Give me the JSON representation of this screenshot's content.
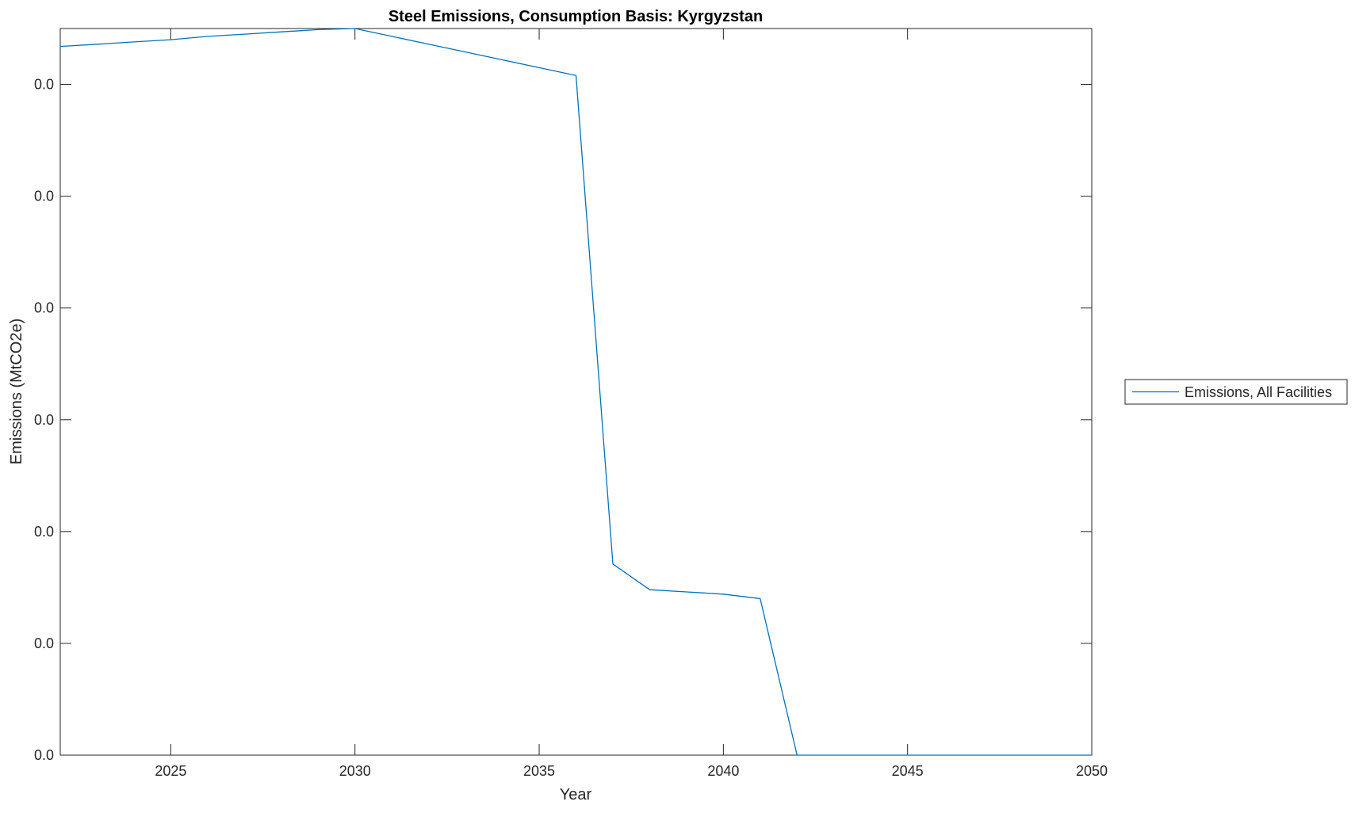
{
  "chart_data": {
    "type": "line",
    "title": "Steel Emissions, Consumption Basis: Kyrgyzstan",
    "xlabel": "Year",
    "ylabel": "Emissions (MtCO2e)",
    "xlim": [
      2022,
      2050
    ],
    "ylim": [
      0,
      0.065
    ],
    "xticks": [
      2025,
      2030,
      2035,
      2040,
      2045,
      2050
    ],
    "xtick_labels": [
      "2025",
      "2030",
      "2035",
      "2040",
      "2045",
      "2050"
    ],
    "yticks": [
      0,
      0.01,
      0.02,
      0.03,
      0.04,
      0.05,
      0.06
    ],
    "ytick_labels": [
      "0.0",
      "0.0",
      "0.0",
      "0.0",
      "0.0",
      "0.0",
      "0.0"
    ],
    "grid": false,
    "legend": {
      "placement": "outside-right",
      "entries": [
        "Emissions, All Facilities"
      ]
    },
    "series": [
      {
        "name": "Emissions, All Facilities",
        "color": "#0072BD",
        "x": [
          2022,
          2023,
          2024,
          2025,
          2026,
          2027,
          2028,
          2029,
          2030,
          2031,
          2032,
          2033,
          2034,
          2035,
          2036,
          2037,
          2038,
          2039,
          2040,
          2041,
          2042,
          2043,
          2044,
          2045,
          2046,
          2047,
          2048,
          2049,
          2050
        ],
        "y": [
          0.0634,
          0.0636,
          0.0638,
          0.064,
          0.0643,
          0.0645,
          0.0647,
          0.0649,
          0.065,
          0.0643,
          0.0636,
          0.0629,
          0.0622,
          0.0615,
          0.0608,
          0.0171,
          0.0148,
          0.0146,
          0.0144,
          0.014,
          0,
          0,
          0,
          0,
          0,
          0,
          0,
          0,
          0
        ]
      }
    ]
  }
}
